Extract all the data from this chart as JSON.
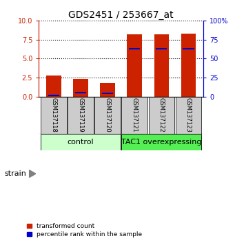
{
  "title": "GDS2451 / 253667_at",
  "samples": [
    "GSM137118",
    "GSM137119",
    "GSM137120",
    "GSM137121",
    "GSM137122",
    "GSM137123"
  ],
  "red_values": [
    2.8,
    2.3,
    1.8,
    8.2,
    8.2,
    8.3
  ],
  "blue_values": [
    0.15,
    0.5,
    0.4,
    6.3,
    6.3,
    6.3
  ],
  "groups": [
    {
      "label": "control",
      "indices": [
        0,
        1,
        2
      ],
      "color": "#ccffcc"
    },
    {
      "label": "TAC1 overexpressing",
      "indices": [
        3,
        4,
        5
      ],
      "color": "#55ee55"
    }
  ],
  "ylim": [
    0,
    10
  ],
  "yticks": [
    0,
    2.5,
    5,
    7.5,
    10
  ],
  "right_yticks": [
    0,
    25,
    50,
    75,
    100
  ],
  "bar_color": "#cc2200",
  "blue_color": "#0000cc",
  "bar_width": 0.55,
  "blue_bar_height": 0.2,
  "legend_red": "transformed count",
  "legend_blue": "percentile rank within the sample",
  "strain_label": "strain",
  "left_tick_color": "#cc2200",
  "right_tick_color": "#0000cc",
  "background_color": "#ffffff",
  "label_bg_color": "#cccccc",
  "title_fontsize": 10,
  "tick_fontsize": 7,
  "sample_fontsize": 6,
  "group_fontsize": 8,
  "legend_fontsize": 6.5
}
